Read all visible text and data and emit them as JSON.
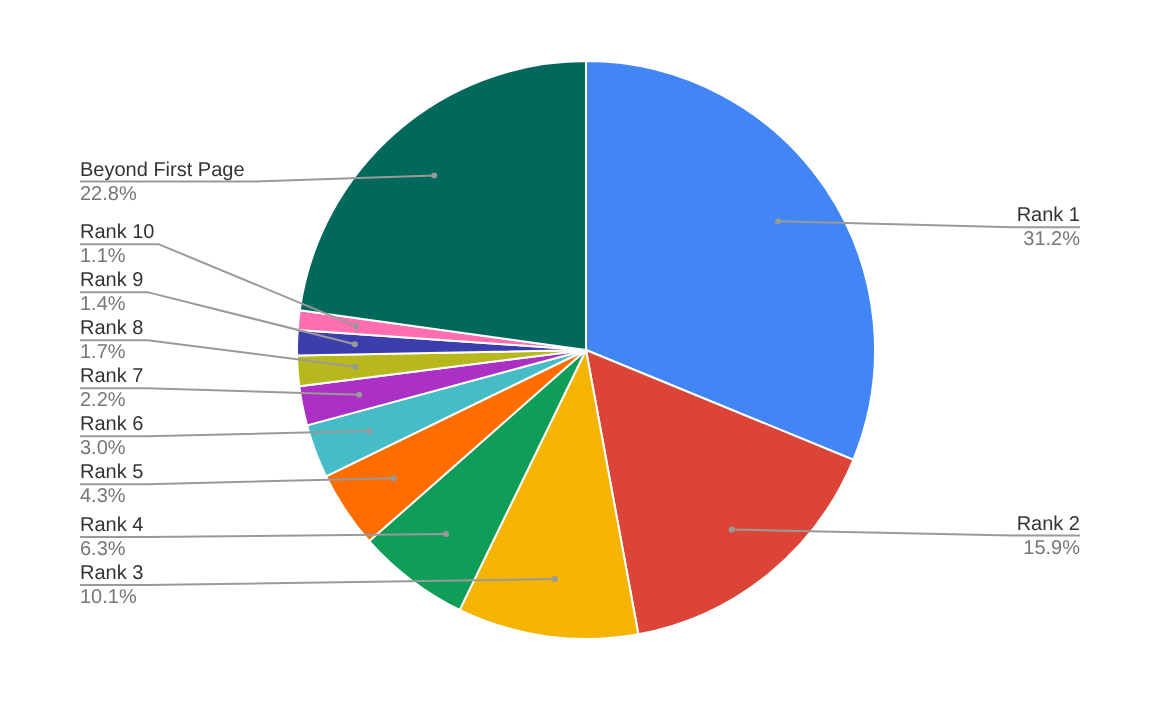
{
  "chart_data": {
    "type": "pie",
    "categories": [
      "Rank 1",
      "Rank 2",
      "Rank 3",
      "Rank 4",
      "Rank 5",
      "Rank 6",
      "Rank 7",
      "Rank 8",
      "Rank 9",
      "Rank 10",
      "Beyond First Page"
    ],
    "values": [
      31.2,
      15.9,
      10.1,
      6.3,
      4.3,
      3.0,
      2.2,
      1.7,
      1.4,
      1.1,
      22.8
    ],
    "colors": [
      "#4285f4",
      "#db4437",
      "#f4b400",
      "#0f9d58",
      "#ff6d01",
      "#46bdc6",
      "#ab30c4",
      "#b7b71e",
      "#3b3eac",
      "#ff6fb0",
      "#00695c"
    ],
    "value_labels": [
      "31.2%",
      "15.9%",
      "10.1%",
      "6.3%",
      "4.3%",
      "3.0%",
      "2.2%",
      "1.7%",
      "1.4%",
      "1.1%",
      "22.8%"
    ],
    "legend": false
  }
}
